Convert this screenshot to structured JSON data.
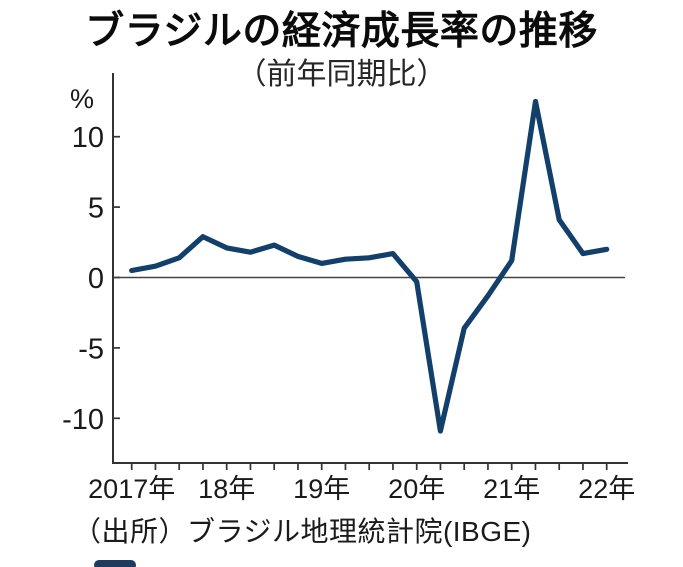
{
  "chart_data": {
    "type": "line",
    "title": "ブラジルの経済成長率の推移",
    "subtitle": "（前年同期比）",
    "ylabel": "%",
    "xlabel": "",
    "line_color": "#12406A",
    "x": [
      "2017Q1",
      "2017Q2",
      "2017Q3",
      "2017Q4",
      "2018Q1",
      "2018Q2",
      "2018Q3",
      "2018Q4",
      "2019Q1",
      "2019Q2",
      "2019Q3",
      "2019Q4",
      "2020Q1",
      "2020Q2",
      "2020Q3",
      "2020Q4",
      "2021Q1",
      "2021Q2",
      "2021Q3",
      "2021Q4",
      "2022Q1"
    ],
    "values": [
      0.5,
      0.8,
      1.4,
      2.9,
      2.1,
      1.8,
      2.3,
      1.5,
      1.0,
      1.3,
      1.4,
      1.7,
      -0.3,
      -10.9,
      -3.6,
      -1.3,
      1.2,
      12.5,
      4.1,
      1.7,
      2.0
    ],
    "yticks": [
      10,
      5,
      0,
      -5,
      -10
    ],
    "ylim": [
      -13.5,
      14.5
    ],
    "xtick_labels": [
      {
        "label": "2017年",
        "q": 0
      },
      {
        "label": "18年",
        "q": 4
      },
      {
        "label": "19年",
        "q": 8
      },
      {
        "label": "20年",
        "q": 12
      },
      {
        "label": "21年",
        "q": 16
      },
      {
        "label": "22年",
        "q": 20
      }
    ],
    "grid": false,
    "zero_line": true,
    "legend": "none"
  },
  "source_note": "（出所）ブラジル地理統計院(IBGE)"
}
